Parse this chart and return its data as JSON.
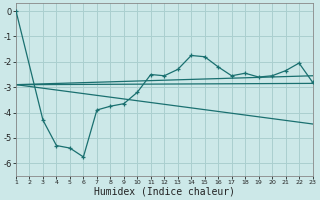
{
  "xlabel": "Humidex (Indice chaleur)",
  "bg_color": "#cce8e8",
  "grid_color": "#aacfcf",
  "line_color": "#1a7070",
  "xlim": [
    1,
    23
  ],
  "ylim": [
    -6.5,
    0.3
  ],
  "x": [
    1,
    2,
    3,
    4,
    5,
    6,
    7,
    8,
    9,
    10,
    11,
    12,
    13,
    14,
    15,
    16,
    17,
    18,
    19,
    20,
    21,
    22,
    23
  ],
  "zigzag_x": [
    1,
    3,
    4,
    5,
    6,
    7,
    8,
    9,
    10,
    11,
    12,
    13,
    14,
    15,
    16,
    17,
    18,
    19,
    20,
    21,
    22,
    23
  ],
  "zigzag_y": [
    0.0,
    -4.3,
    -5.3,
    -5.4,
    -5.75,
    -3.9,
    -3.75,
    -3.65,
    -3.2,
    -2.5,
    -2.55,
    -2.3,
    -1.75,
    -1.8,
    -2.2,
    -2.55,
    -2.45,
    -2.6,
    -2.55,
    -2.35,
    -2.05,
    -2.8
  ],
  "flat_line_x": [
    1,
    2,
    23
  ],
  "flat_line_y": [
    -2.9,
    -2.9,
    -2.85
  ],
  "trend1_x": [
    1,
    23
  ],
  "trend1_y": [
    -2.9,
    -2.55
  ],
  "trend2_x": [
    1,
    23
  ],
  "trend2_y": [
    -2.9,
    -4.45
  ],
  "xticks": [
    1,
    2,
    3,
    4,
    5,
    6,
    7,
    8,
    9,
    10,
    11,
    12,
    13,
    14,
    15,
    16,
    17,
    18,
    19,
    20,
    21,
    22,
    23
  ],
  "yticks": [
    0,
    -1,
    -2,
    -3,
    -4,
    -5,
    -6
  ]
}
